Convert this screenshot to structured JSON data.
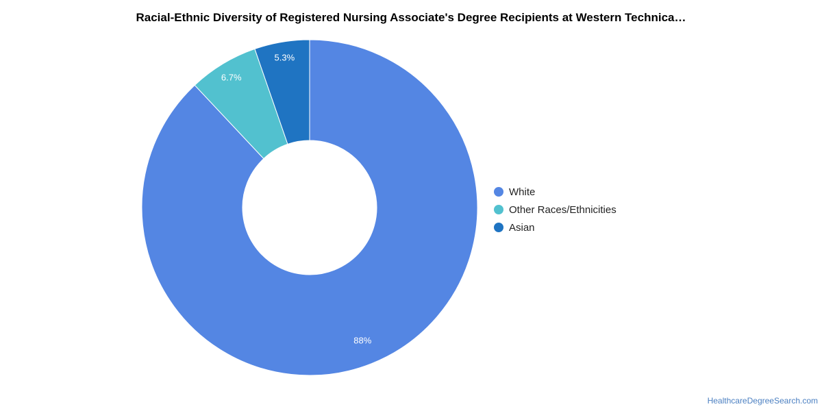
{
  "chart_data": {
    "type": "pie",
    "title": "Racial-Ethnic Diversity of Registered Nursing Associate's Degree Recipients at Western Technica…",
    "donut": true,
    "slices": [
      {
        "name": "White",
        "value": 88,
        "label": "88%",
        "color": "#5486e3"
      },
      {
        "name": "Other Races/Ethnicities",
        "value": 6.7,
        "label": "6.7%",
        "color": "#52c1cf"
      },
      {
        "name": "Asian",
        "value": 5.3,
        "label": "5.3%",
        "color": "#1f74c2"
      }
    ],
    "legend_position": "right"
  },
  "footer": {
    "source": "HealthcareDegreeSearch.com"
  }
}
